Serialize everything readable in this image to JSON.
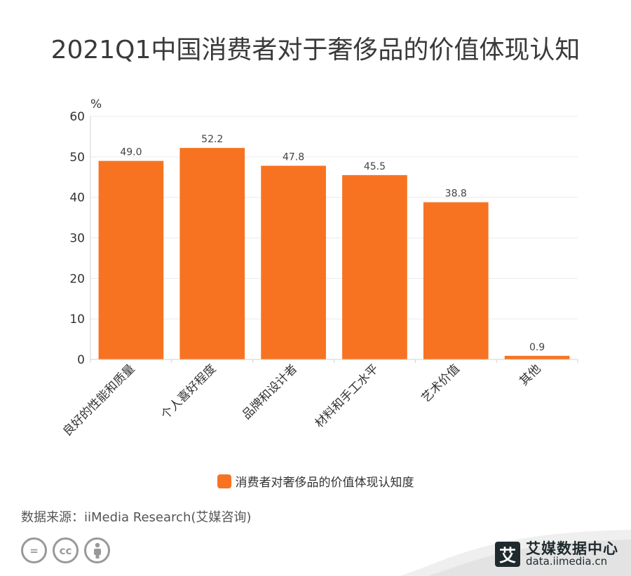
{
  "title": "2021Q1中国消费者对于奢侈品的价值体现认知",
  "chart_data": {
    "type": "bar",
    "categories": [
      "良好的性能和质量",
      "个人喜好程度",
      "品牌和设计者",
      "材料和手工水平",
      "艺术价值",
      "其他"
    ],
    "series": [
      {
        "name": "消费者对奢侈品的价值体现认知度",
        "values": [
          49.0,
          52.2,
          47.8,
          45.5,
          38.8,
          0.9
        ]
      }
    ],
    "value_labels": [
      "49.0",
      "52.2",
      "47.8",
      "45.5",
      "38.8",
      "0.9"
    ],
    "yunit": "%",
    "ylim": [
      0,
      60
    ],
    "yticks": [
      "0",
      "10",
      "20",
      "30",
      "40",
      "50",
      "60"
    ],
    "grid": true,
    "legend_position": "bottom",
    "bar_color": "#f77321"
  },
  "source": "数据来源：iiMedia Research(艾媒咨询)",
  "cc_icons": [
    {
      "icon": "equals-icon",
      "glyph": "="
    },
    {
      "icon": "cc-icon",
      "glyph": "cc"
    },
    {
      "icon": "person-icon",
      "glyph": "ⵊ"
    }
  ],
  "brand": {
    "logo_glyph": "艾",
    "name": "艾媒数据中心",
    "url": "data.iimedia.cn"
  }
}
